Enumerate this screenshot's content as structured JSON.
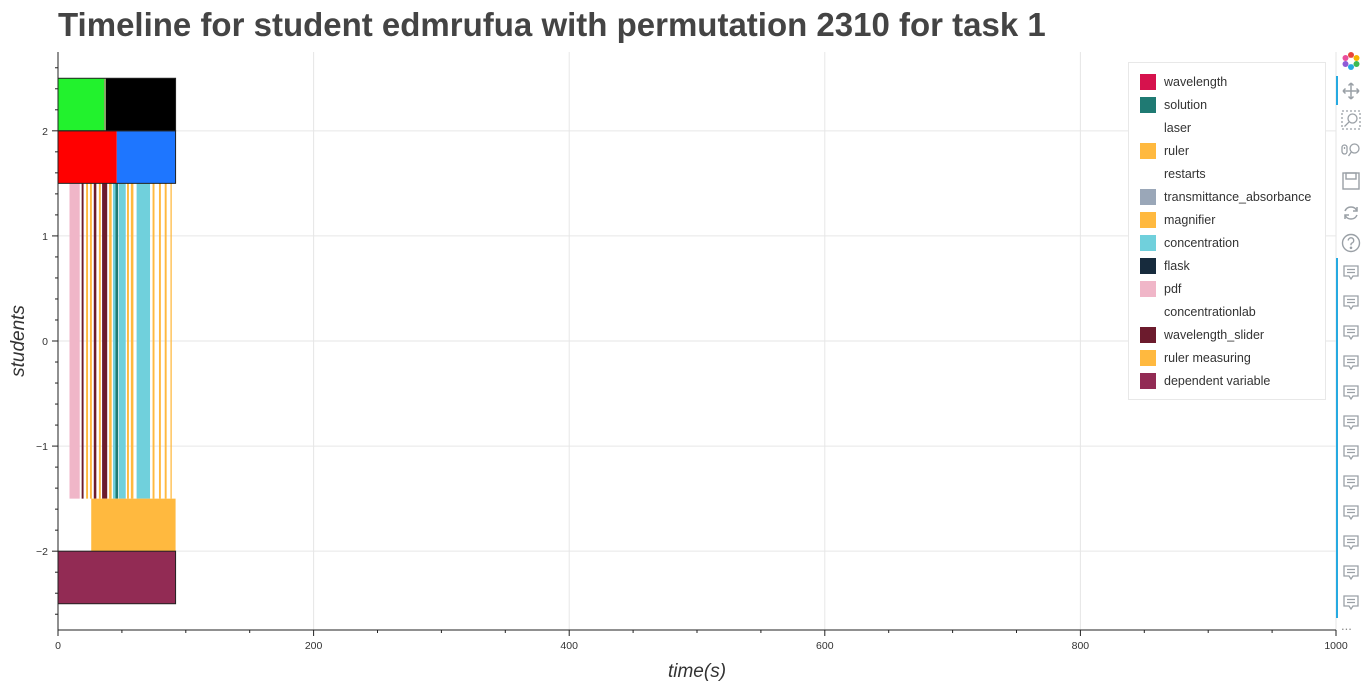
{
  "title": "Timeline for student edmrufua with permutation 2310 for task 1",
  "chart_data": {
    "type": "bar",
    "orientation": "horizontal-timeline",
    "title": "Timeline for student edmrufua with permutation 2310 for task 1",
    "xlabel": "time(s)",
    "ylabel": "students",
    "xlim": [
      0,
      1000
    ],
    "ylim": [
      -2.75,
      2.75
    ],
    "x_ticks": [
      0,
      200,
      400,
      600,
      800,
      1000
    ],
    "y_ticks": [
      -2,
      -1,
      0,
      1,
      2
    ],
    "grid": true,
    "legend_position": "top-right",
    "legend": [
      {
        "name": "wavelength",
        "color": "#d6124d"
      },
      {
        "name": "solution",
        "color": "#1f7a73"
      },
      {
        "name": "laser",
        "color": "#ffffff"
      },
      {
        "name": "ruler",
        "color": "#ffb93f"
      },
      {
        "name": "restarts",
        "color": "#ffffff"
      },
      {
        "name": "transmittance_absorbance",
        "color": "#9aa7b8"
      },
      {
        "name": "magnifier",
        "color": "#ffb93f"
      },
      {
        "name": "concentration",
        "color": "#70d0dc"
      },
      {
        "name": "flask",
        "color": "#172b3d"
      },
      {
        "name": "pdf",
        "color": "#f0b6c8"
      },
      {
        "name": "concentrationlab",
        "color": "#ffffff"
      },
      {
        "name": "wavelength_slider",
        "color": "#6c1b2d"
      },
      {
        "name": "ruler measuring",
        "color": "#ffb93f"
      },
      {
        "name": "dependent variable",
        "color": "#922b54"
      }
    ],
    "bars": [
      {
        "y_bottom": 2,
        "y_top": 2.5,
        "x_start": 0,
        "x_end": 36,
        "color": "#22f22d",
        "outline": false
      },
      {
        "y_bottom": 2,
        "y_top": 2.5,
        "x_start": 36,
        "x_end": 37.5,
        "color": "#88aa66",
        "outline": false
      },
      {
        "y_bottom": 2,
        "y_top": 2.5,
        "x_start": 37.5,
        "x_end": 92,
        "color": "#000000",
        "outline": false
      },
      {
        "y_bottom": 1.5,
        "y_top": 2,
        "x_start": 0,
        "x_end": 46,
        "color": "#ff0000",
        "outline": false
      },
      {
        "y_bottom": 1.5,
        "y_top": 2,
        "x_start": 46,
        "x_end": 92,
        "color": "#1e76ff",
        "outline": false
      },
      {
        "y_bottom": -1.5,
        "y_top": 1.5,
        "x_start": 9,
        "x_end": 17,
        "color": "#f0b6c8",
        "outline": false
      },
      {
        "y_bottom": -1.5,
        "y_top": 1.5,
        "x_start": 18.5,
        "x_end": 20,
        "color": "#6c1b2d",
        "outline": false
      },
      {
        "y_bottom": -1.5,
        "y_top": 1.5,
        "x_start": 22,
        "x_end": 23.5,
        "color": "#ffb93f",
        "outline": false
      },
      {
        "y_bottom": -1.5,
        "y_top": 1.5,
        "x_start": 25,
        "x_end": 26.5,
        "color": "#ffb93f",
        "outline": false
      },
      {
        "y_bottom": -1.5,
        "y_top": 1.5,
        "x_start": 28,
        "x_end": 30,
        "color": "#6c1b2d",
        "outline": false
      },
      {
        "y_bottom": -1.5,
        "y_top": 1.5,
        "x_start": 32,
        "x_end": 33.5,
        "color": "#ffb93f",
        "outline": false
      },
      {
        "y_bottom": -1.5,
        "y_top": 1.5,
        "x_start": 34.5,
        "x_end": 38.5,
        "color": "#6c1b2d",
        "outline": false
      },
      {
        "y_bottom": -1.5,
        "y_top": 1.5,
        "x_start": 40,
        "x_end": 42,
        "color": "#ffb93f",
        "outline": false
      },
      {
        "y_bottom": -1.5,
        "y_top": 1.5,
        "x_start": 43,
        "x_end": 45,
        "color": "#70d0dc",
        "outline": false
      },
      {
        "y_bottom": -1.5,
        "y_top": 1.5,
        "x_start": 45,
        "x_end": 47,
        "color": "#1f7a73",
        "outline": false
      },
      {
        "y_bottom": -1.5,
        "y_top": 1.5,
        "x_start": 47.5,
        "x_end": 53,
        "color": "#70d0dc",
        "outline": false
      },
      {
        "y_bottom": -1.5,
        "y_top": 1.5,
        "x_start": 54,
        "x_end": 55.5,
        "color": "#ffb93f",
        "outline": false
      },
      {
        "y_bottom": -1.5,
        "y_top": 1.5,
        "x_start": 57,
        "x_end": 59,
        "color": "#ffb93f",
        "outline": false
      },
      {
        "y_bottom": -1.5,
        "y_top": 1.5,
        "x_start": 61.5,
        "x_end": 63,
        "color": "#70d0dc",
        "outline": false
      },
      {
        "y_bottom": -1.5,
        "y_top": 1.5,
        "x_start": 62,
        "x_end": 72,
        "color": "#70d0dc",
        "outline": false
      },
      {
        "y_bottom": -1.5,
        "y_top": 1.5,
        "x_start": 74,
        "x_end": 75.5,
        "color": "#ffb93f",
        "outline": false
      },
      {
        "y_bottom": -1.5,
        "y_top": 1.5,
        "x_start": 79,
        "x_end": 80.5,
        "color": "#ffb93f",
        "outline": false
      },
      {
        "y_bottom": -1.5,
        "y_top": 1.5,
        "x_start": 83.5,
        "x_end": 85,
        "color": "#ffb93f",
        "outline": false
      },
      {
        "y_bottom": -1.5,
        "y_top": 1.5,
        "x_start": 88,
        "x_end": 89,
        "color": "#ffb93f",
        "outline": false
      },
      {
        "y_bottom": -2,
        "y_top": -1.5,
        "x_start": 26,
        "x_end": 92,
        "color": "#ffb93f",
        "outline": false
      },
      {
        "y_bottom": -2.5,
        "y_top": -2,
        "x_start": 0,
        "x_end": 92,
        "color": "#922b54",
        "outline": false
      }
    ],
    "outlined_rows": [
      {
        "y_bottom": 2,
        "y_top": 2.5,
        "x_start": 0,
        "x_end": 92
      },
      {
        "y_bottom": 1.5,
        "y_top": 2,
        "x_start": 0,
        "x_end": 92
      },
      {
        "y_bottom": -2.5,
        "y_top": -2,
        "x_start": 0,
        "x_end": 92
      }
    ]
  },
  "toolbar": {
    "tools": [
      {
        "name": "bokeh-logo-icon",
        "active": false
      },
      {
        "name": "pan-icon",
        "active": true
      },
      {
        "name": "box-zoom-icon",
        "active": false
      },
      {
        "name": "wheel-zoom-icon",
        "active": false
      },
      {
        "name": "save-icon",
        "active": false
      },
      {
        "name": "reset-icon",
        "active": false
      },
      {
        "name": "help-icon",
        "active": false
      },
      {
        "name": "hover-icon",
        "active": true
      },
      {
        "name": "hover-icon",
        "active": true
      },
      {
        "name": "hover-icon",
        "active": true
      },
      {
        "name": "hover-icon",
        "active": true
      },
      {
        "name": "hover-icon",
        "active": true
      },
      {
        "name": "hover-icon",
        "active": true
      },
      {
        "name": "hover-icon",
        "active": true
      },
      {
        "name": "hover-icon",
        "active": true
      },
      {
        "name": "hover-icon",
        "active": true
      },
      {
        "name": "hover-icon",
        "active": true
      },
      {
        "name": "hover-icon",
        "active": true
      },
      {
        "name": "hover-icon",
        "active": true
      }
    ],
    "more_label": "..."
  }
}
